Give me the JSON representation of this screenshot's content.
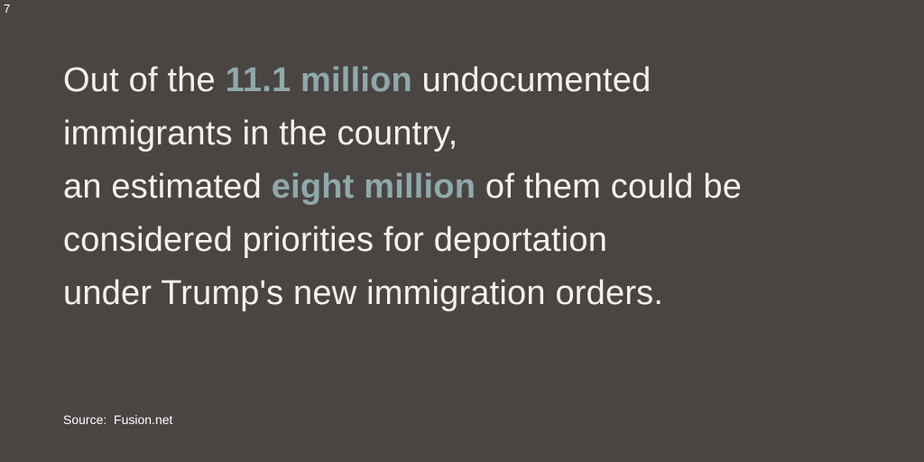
{
  "slide_number": "7",
  "highlight_color": "#8fa9ab",
  "background_color": "#4a4543",
  "text_color": "#f3f1ef",
  "statement": {
    "line1_before": "Out of the ",
    "line1_highlight": "11.1 million",
    "line1_after": " undocumented",
    "line2": "immigrants in the country,",
    "line3_before": "an estimated ",
    "line3_highlight": "eight million",
    "line3_after": " of them could be",
    "line4": "considered priorities for deportation",
    "line5": "under Trump's new immigration orders."
  },
  "source": {
    "label": "Source:",
    "value": "Fusion.net"
  }
}
